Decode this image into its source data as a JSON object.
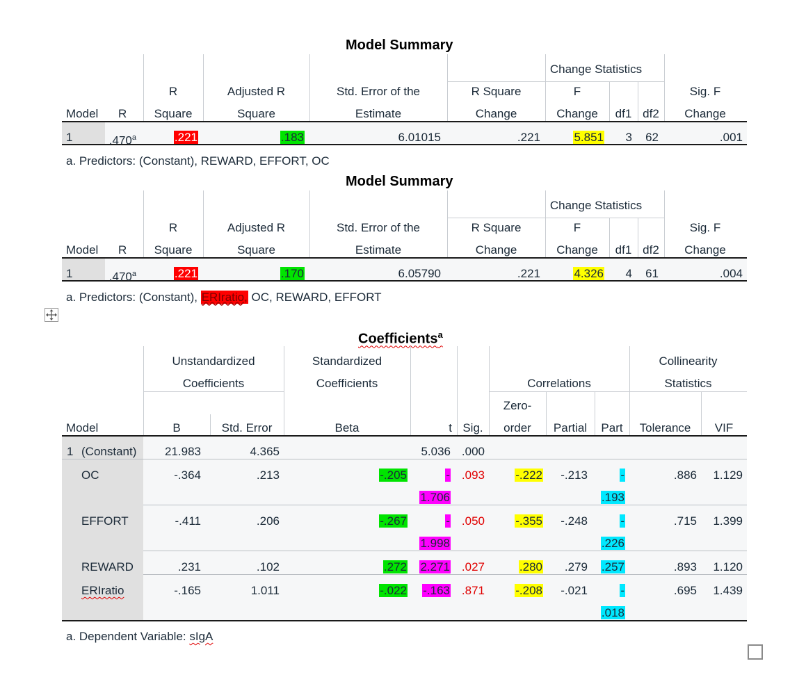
{
  "summary1": {
    "title": "Model Summary",
    "headers": {
      "change_statistics": "Change Statistics",
      "model": "Model",
      "r": "R",
      "r_square_1": "R",
      "r_square_2": "Square",
      "adj_1": "Adjusted R",
      "adj_2": "Square",
      "se_1": "Std. Error of the",
      "se_2": "Estimate",
      "rsc_1": "R Square",
      "rsc_2": "Change",
      "fc_1": "F",
      "fc_2": "Change",
      "df1": "df1",
      "df2": "df2",
      "sig_1": "Sig. F",
      "sig_2": "Change"
    },
    "row": {
      "model": "1",
      "r": ".470",
      "r_sup": "a",
      "r_square": ".221",
      "adj_r_square": ".183",
      "se": "6.01015",
      "r_square_change": ".221",
      "f_change": "5.851",
      "df1": "3",
      "df2": "62",
      "sig_f_change": ".001"
    },
    "footnote": "a. Predictors: (Constant), REWARD, EFFORT, OC"
  },
  "summary2": {
    "title": "Model Summary",
    "headers": {
      "change_statistics": "Change Statistics",
      "model": "Model",
      "r": "R",
      "r_square_1": "R",
      "r_square_2": "Square",
      "adj_1": "Adjusted R",
      "adj_2": "Square",
      "se_1": "Std. Error of the",
      "se_2": "Estimate",
      "rsc_1": "R Square",
      "rsc_2": "Change",
      "fc_1": "F",
      "fc_2": "Change",
      "df1": "df1",
      "df2": "df2",
      "sig_1": "Sig. F",
      "sig_2": "Change"
    },
    "row": {
      "model": "1",
      "r": ".470",
      "r_sup": "a",
      "r_square": ".221",
      "adj_r_square": ".170",
      "se": "6.05790",
      "r_square_change": ".221",
      "f_change": "4.326",
      "df1": "4",
      "df2": "61",
      "sig_f_change": ".004"
    },
    "footnote_prefix": "a. Predictors: (Constant), ",
    "footnote_highlight": "ERIratio,",
    "footnote_suffix": " OC, REWARD, EFFORT"
  },
  "coefficients": {
    "title": "Coefficients",
    "title_sup": "a",
    "headers": {
      "unstd_1": "Unstandardized",
      "unstd_2": "Coefficients",
      "std_1": "Standardized",
      "std_2": "Coefficients",
      "correlations": "Correlations",
      "coll_1": "Collinearity",
      "coll_2": "Statistics",
      "zero_1": "Zero-",
      "zero_2": "order",
      "model": "Model",
      "b": "B",
      "std_error": "Std. Error",
      "beta": "Beta",
      "t": "t",
      "sig": "Sig.",
      "partial": "Partial",
      "part": "Part",
      "tolerance": "Tolerance",
      "vif": "VIF"
    },
    "rows": [
      {
        "num": "1",
        "name": "(Constant)",
        "b": "21.983",
        "se": "4.365",
        "beta": "",
        "t_a": "5.036",
        "t_b": "",
        "sig": ".000",
        "zero": "",
        "partial": "",
        "part_a": "",
        "part_b": "",
        "tol": "",
        "vif": ""
      },
      {
        "num": "",
        "name": "OC",
        "b": "-.364",
        "se": ".213",
        "beta": "-.205",
        "t_a": "-",
        "t_b": "1.706",
        "sig": ".093",
        "zero": "-.222",
        "partial": "-.213",
        "part_a": "-",
        "part_b": ".193",
        "tol": ".886",
        "vif": "1.129"
      },
      {
        "num": "",
        "name": "EFFORT",
        "b": "-.411",
        "se": ".206",
        "beta": "-.267",
        "t_a": "-",
        "t_b": "1.998",
        "sig": ".050",
        "zero": "-.355",
        "partial": "-.248",
        "part_a": "-",
        "part_b": ".226",
        "tol": ".715",
        "vif": "1.399"
      },
      {
        "num": "",
        "name": "REWARD",
        "b": ".231",
        "se": ".102",
        "beta": ".272",
        "t_a": "2.271",
        "t_b": "",
        "sig": ".027",
        "zero": ".280",
        "partial": ".279",
        "part_a": ".257",
        "part_b": "",
        "tol": ".893",
        "vif": "1.120"
      },
      {
        "num": "",
        "name": "ERIratio",
        "b": "-.165",
        "se": "1.011",
        "beta": "-.022",
        "t_a": "-.163",
        "t_b": "",
        "sig": ".871",
        "zero": "-.208",
        "partial": "-.021",
        "part_a": "-",
        "part_b": ".018",
        "tol": ".695",
        "vif": "1.439"
      }
    ],
    "footnote_prefix": "a. Dependent Variable: ",
    "footnote_var": "sIgA"
  },
  "colors": {
    "red": "#ff0000",
    "green": "#00e400",
    "yellow": "#ffff00",
    "magenta": "#ff00ff",
    "cyan": "#00e8ff"
  },
  "icons": {
    "move_handle": "move-icon",
    "checkbox": "checkbox-icon"
  }
}
